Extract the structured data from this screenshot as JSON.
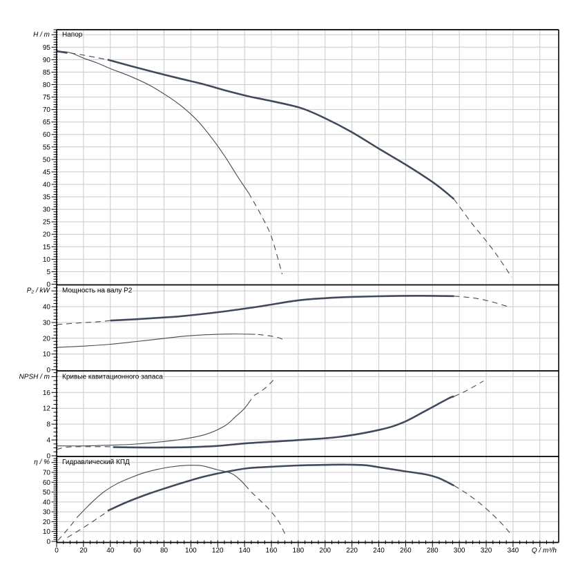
{
  "chart_data": {
    "type": "line",
    "title": "",
    "x_axis": {
      "label": "Q / m³/h",
      "min": 0,
      "max": 374,
      "major_step": 20,
      "minor_step": 5,
      "tick_label_max": 340
    },
    "colors": {
      "curve": "#404a5a",
      "grid": "#c9c9c9",
      "axis": "#000000",
      "background": "#ffffff",
      "text": "#000000"
    },
    "panels": [
      {
        "id": "head",
        "title": "Напор",
        "unit_label": "H / m",
        "y_min": 0,
        "y_max": 102,
        "major_step": 5,
        "minor_step": 1,
        "tick_label_max": 95,
        "series": [
          {
            "name": "head-max-shutoff-stub",
            "style": "thick",
            "points": [
              [
                0,
                93.4
              ],
              [
                8,
                92.7
              ]
            ]
          },
          {
            "name": "head-max-lead-dashed",
            "style": "dash",
            "points": [
              [
                10,
                92.7
              ],
              [
                20,
                91.8
              ],
              [
                30,
                90.8
              ],
              [
                37,
                90.1
              ]
            ]
          },
          {
            "name": "head-max-main",
            "style": "thick",
            "points": [
              [
                38,
                90.0
              ],
              [
                57,
                87.2
              ],
              [
                74,
                84.8
              ],
              [
                92,
                82.4
              ],
              [
                109,
                80.2
              ],
              [
                126,
                77.6
              ],
              [
                143,
                75.3
              ],
              [
                160,
                73.4
              ],
              [
                182,
                70.6
              ],
              [
                200,
                66.5
              ],
              [
                220,
                60.9
              ],
              [
                241,
                54.0
              ],
              [
                261,
                47.6
              ],
              [
                282,
                40.2
              ],
              [
                296,
                34.1
              ]
            ]
          },
          {
            "name": "head-max-tail-dashed",
            "style": "dash",
            "points": [
              [
                296,
                34.1
              ],
              [
                309,
                24.6
              ],
              [
                319,
                18.0
              ],
              [
                328,
                11.6
              ],
              [
                339,
                2.8
              ]
            ]
          },
          {
            "name": "head-min-main",
            "style": "thin",
            "points": [
              [
                0,
                93.4
              ],
              [
                10,
                92.8
              ],
              [
                20,
                90.6
              ],
              [
                30,
                88.7
              ],
              [
                40,
                86.4
              ],
              [
                55,
                83.3
              ],
              [
                70,
                79.5
              ],
              [
                85,
                74.5
              ],
              [
                95,
                70.5
              ],
              [
                105,
                65.5
              ],
              [
                115,
                59.0
              ],
              [
                125,
                51.5
              ],
              [
                135,
                43.0
              ],
              [
                143,
                36.6
              ]
            ]
          },
          {
            "name": "head-min-tail-dashed",
            "style": "dash",
            "points": [
              [
                143,
                36.6
              ],
              [
                152,
                28.0
              ],
              [
                160,
                19.0
              ],
              [
                168,
                4.0
              ]
            ]
          }
        ]
      },
      {
        "id": "power",
        "title": "Мощность на валу P2",
        "unit_label": "P₂ / kW",
        "y_min": 0,
        "y_max": 53.4,
        "major_step": 10,
        "minor_step": 2,
        "tick_label_max": 40,
        "series": [
          {
            "name": "power-max-lead-dashed",
            "style": "dash",
            "points": [
              [
                0,
                28.7
              ],
              [
                15,
                29.6
              ],
              [
                30,
                30.4
              ],
              [
                40,
                31.2
              ]
            ]
          },
          {
            "name": "power-max-main",
            "style": "thick",
            "points": [
              [
                40,
                31.2
              ],
              [
                60,
                32.1
              ],
              [
                80,
                33.2
              ],
              [
                92,
                33.9
              ],
              [
                120,
                36.5
              ],
              [
                150,
                40.0
              ],
              [
                179,
                43.9
              ],
              [
                200,
                45.4
              ],
              [
                220,
                46.2
              ],
              [
                245,
                46.7
              ],
              [
                270,
                46.9
              ],
              [
                296,
                46.7
              ]
            ]
          },
          {
            "name": "power-max-tail-dashed",
            "style": "dash",
            "points": [
              [
                296,
                46.7
              ],
              [
                310,
                45.6
              ],
              [
                322,
                43.6
              ],
              [
                338,
                39.6
              ]
            ]
          },
          {
            "name": "power-min-main",
            "style": "thin",
            "points": [
              [
                0,
                14.2
              ],
              [
                20,
                15.0
              ],
              [
                40,
                16.2
              ],
              [
                60,
                18.0
              ],
              [
                80,
                19.9
              ],
              [
                95,
                21.3
              ],
              [
                110,
                22.2
              ],
              [
                130,
                22.7
              ],
              [
                148,
                22.5
              ]
            ]
          },
          {
            "name": "power-min-tail-dashed",
            "style": "dash",
            "points": [
              [
                150,
                22.4
              ],
              [
                158,
                21.6
              ],
              [
                165,
                20.4
              ],
              [
                170,
                18.7
              ]
            ]
          }
        ]
      },
      {
        "id": "npsh",
        "title": "Кривые кавитационного запаса",
        "unit_label": "NPSH / m",
        "y_min": 0,
        "y_max": 21.2,
        "major_step": 4,
        "minor_step": 1,
        "tick_label_max": 16,
        "series": [
          {
            "name": "npsh-max-lead-dashed",
            "style": "dash",
            "points": [
              [
                0,
                1.6
              ],
              [
                8,
                2.2
              ],
              [
                25,
                2.3
              ],
              [
                40,
                2.3
              ]
            ]
          },
          {
            "name": "npsh-max-main",
            "style": "thick",
            "points": [
              [
                42,
                2.2
              ],
              [
                60,
                2.1
              ],
              [
                80,
                2.1
              ],
              [
                100,
                2.2
              ],
              [
                120,
                2.5
              ],
              [
                143,
                3.2
              ],
              [
                177,
                3.9
              ],
              [
                211,
                4.8
              ],
              [
                241,
                6.6
              ],
              [
                258,
                8.4
              ],
              [
                275,
                11.4
              ],
              [
                292,
                14.5
              ],
              [
                296,
                15.0
              ]
            ]
          },
          {
            "name": "npsh-max-tail-dashed",
            "style": "dash",
            "points": [
              [
                296,
                15.0
              ],
              [
                305,
                16.4
              ],
              [
                318,
                18.9
              ]
            ]
          },
          {
            "name": "npsh-min-main",
            "style": "thin",
            "points": [
              [
                0,
                2.5
              ],
              [
                20,
                2.5
              ],
              [
                40,
                2.7
              ],
              [
                56,
                2.9
              ],
              [
                71,
                3.3
              ],
              [
                92,
                4.1
              ],
              [
                111,
                5.4
              ],
              [
                125,
                7.5
              ],
              [
                133,
                9.8
              ],
              [
                140,
                12.0
              ],
              [
                145,
                14.3
              ]
            ]
          },
          {
            "name": "npsh-min-tail-dashed",
            "style": "dash",
            "points": [
              [
                147,
                15.2
              ],
              [
                155,
                17.0
              ],
              [
                162,
                19.3
              ]
            ]
          }
        ]
      },
      {
        "id": "eff",
        "title": "Гидравлический КПД",
        "unit_label": "η / %",
        "y_min": 0,
        "y_max": 85.4,
        "major_step": 10,
        "minor_step": 2,
        "tick_label_max": 70,
        "series": [
          {
            "name": "eff-min-lead-dashed",
            "style": "dash",
            "points": [
              [
                1,
                1.0
              ],
              [
                8,
                12.0
              ],
              [
                14,
                22.0
              ]
            ]
          },
          {
            "name": "eff-min-main",
            "style": "thin",
            "points": [
              [
                15,
                24.0
              ],
              [
                25,
                38.0
              ],
              [
                35,
                50.0
              ],
              [
                45,
                58.5
              ],
              [
                55,
                64.5
              ],
              [
                65,
                69.5
              ],
              [
                75,
                73.0
              ],
              [
                85,
                75.5
              ],
              [
                97,
                77.1
              ],
              [
                108,
                76.8
              ],
              [
                119,
                72.9
              ],
              [
                130,
                69.0
              ],
              [
                137,
                62.0
              ],
              [
                143,
                53.0
              ]
            ]
          },
          {
            "name": "eff-min-tail-dashed",
            "style": "dash",
            "points": [
              [
                145,
                50.0
              ],
              [
                152,
                41.0
              ],
              [
                158,
                33.0
              ],
              [
                165,
                21.0
              ],
              [
                170,
                8.0
              ]
            ]
          },
          {
            "name": "eff-max-lead-dashed",
            "style": "dash",
            "points": [
              [
                8,
                4.0
              ],
              [
                20,
                14.0
              ],
              [
                30,
                23.0
              ],
              [
                37,
                29.5
              ]
            ]
          },
          {
            "name": "eff-max-main",
            "style": "thick",
            "points": [
              [
                38,
                31.0
              ],
              [
                50,
                38.5
              ],
              [
                60,
                44.0
              ],
              [
                70,
                49.0
              ],
              [
                80,
                53.5
              ],
              [
                92,
                58.7
              ],
              [
                105,
                64.0
              ],
              [
                117,
                68.0
              ],
              [
                130,
                71.5
              ],
              [
                143,
                74.3
              ],
              [
                160,
                75.7
              ],
              [
                180,
                77.0
              ],
              [
                200,
                77.6
              ],
              [
                215,
                77.8
              ],
              [
                230,
                77.2
              ],
              [
                241,
                75.0
              ],
              [
                258,
                71.4
              ],
              [
                275,
                67.9
              ],
              [
                285,
                64.0
              ],
              [
                296,
                56.6
              ]
            ]
          },
          {
            "name": "eff-max-tail-dashed",
            "style": "dash",
            "points": [
              [
                296,
                56.6
              ],
              [
                305,
                49.0
              ],
              [
                315,
                39.0
              ],
              [
                325,
                27.0
              ],
              [
                333,
                16.0
              ],
              [
                338,
                8.0
              ]
            ]
          }
        ]
      }
    ]
  }
}
